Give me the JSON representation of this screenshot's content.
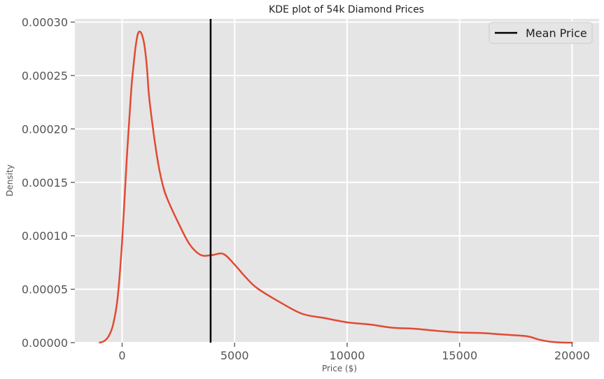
{
  "chart_data": {
    "type": "line",
    "title": "KDE plot of 54k Diamond Prices",
    "xlabel": "Price ($)",
    "ylabel": "Density",
    "xlim": [
      -2100,
      21200
    ],
    "ylim": [
      0,
      0.000303
    ],
    "xticks": [
      0,
      5000,
      10000,
      15000,
      20000
    ],
    "xtick_labels": [
      "0",
      "5000",
      "10000",
      "15000",
      "20000"
    ],
    "yticks": [
      0,
      5e-05,
      0.0001,
      0.00015,
      0.0002,
      0.00025,
      0.0003
    ],
    "ytick_labels": [
      "0.00000",
      "0.00005",
      "0.00010",
      "0.00015",
      "0.00020",
      "0.00025",
      "0.00030"
    ],
    "grid": true,
    "legend_position": "top-right",
    "series": [
      {
        "name": "",
        "kind": "kde-curve",
        "color": "#e24a33",
        "x": [
          -1000,
          -800,
          -600,
          -400,
          -200,
          0,
          200,
          400,
          500,
          600,
          700,
          800,
          900,
          1000,
          1100,
          1200,
          1400,
          1600,
          1800,
          2000,
          2500,
          3000,
          3500,
          4000,
          4500,
          5000,
          5500,
          6000,
          7000,
          8000,
          9000,
          10000,
          11000,
          12000,
          13000,
          14000,
          15000,
          16000,
          17000,
          18000,
          18500,
          19000,
          19500,
          20000
        ],
        "y": [
          0,
          1.5e-06,
          6e-06,
          1.7e-05,
          4.2e-05,
          9.5e-05,
          0.00017,
          0.000235,
          0.000258,
          0.000277,
          0.000289,
          0.000291,
          0.000287,
          0.000277,
          0.000258,
          0.00023,
          0.000196,
          0.000168,
          0.000148,
          0.000135,
          0.000112,
          9.2e-05,
          8.2e-05,
          8.2e-05,
          8.3e-05,
          7.3e-05,
          6.1e-05,
          5.1e-05,
          3.8e-05,
          2.7e-05,
          2.3e-05,
          1.9e-05,
          1.7e-05,
          1.4e-05,
          1.3e-05,
          1.1e-05,
          9.5e-06,
          9e-06,
          7.5e-06,
          6e-06,
          3e-06,
          1e-06,
          2e-07,
          0
        ]
      },
      {
        "name": "Mean Price",
        "kind": "vertical-line",
        "color": "#000000",
        "x": 3933
      }
    ]
  }
}
